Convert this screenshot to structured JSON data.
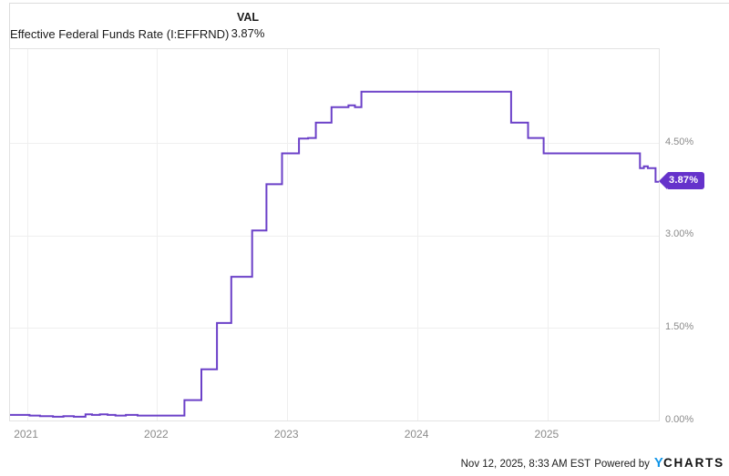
{
  "header": {
    "title": "Effective Federal Funds Rate (I:EFFRND)",
    "val_label": "VAL",
    "val_value": "3.87%"
  },
  "chart_data": {
    "type": "line",
    "line_style": "step-after",
    "title": "Effective Federal Funds Rate (I:EFFRND)",
    "xlabel": "",
    "ylabel": "",
    "xlim": [
      2020.87,
      2025.855
    ],
    "ylim": [
      0,
      6.02
    ],
    "grid": true,
    "y_axis_position": "right",
    "x_ticks": [
      2021,
      2022,
      2023,
      2024,
      2025
    ],
    "x_tick_labels": [
      "2021",
      "2022",
      "2023",
      "2024",
      "2025"
    ],
    "y_ticks": [
      0.0,
      1.5,
      3.0,
      4.5
    ],
    "y_tick_labels": [
      "0.00%",
      "1.50%",
      "3.00%",
      "4.50%"
    ],
    "series": [
      {
        "name": "Effective Federal Funds Rate (I:EFFRND)",
        "points": [
          [
            2020.87,
            0.09
          ],
          [
            2021.02,
            0.08
          ],
          [
            2021.1,
            0.07
          ],
          [
            2021.2,
            0.06
          ],
          [
            2021.28,
            0.07
          ],
          [
            2021.36,
            0.06
          ],
          [
            2021.45,
            0.1
          ],
          [
            2021.5,
            0.09
          ],
          [
            2021.56,
            0.1
          ],
          [
            2021.62,
            0.09
          ],
          [
            2021.68,
            0.08
          ],
          [
            2021.76,
            0.09
          ],
          [
            2021.85,
            0.08
          ],
          [
            2022.05,
            0.08
          ],
          [
            2022.21,
            0.33
          ],
          [
            2022.34,
            0.83
          ],
          [
            2022.46,
            1.58
          ],
          [
            2022.57,
            2.33
          ],
          [
            2022.73,
            3.08
          ],
          [
            2022.84,
            3.83
          ],
          [
            2022.96,
            4.33
          ],
          [
            2023.09,
            4.57
          ],
          [
            2023.16,
            4.58
          ],
          [
            2023.22,
            4.83
          ],
          [
            2023.34,
            5.08
          ],
          [
            2023.47,
            5.11
          ],
          [
            2023.52,
            5.08
          ],
          [
            2023.57,
            5.33
          ],
          [
            2024.72,
            4.83
          ],
          [
            2024.85,
            4.58
          ],
          [
            2024.97,
            4.33
          ],
          [
            2025.71,
            4.09
          ],
          [
            2025.74,
            4.12
          ],
          [
            2025.77,
            4.09
          ],
          [
            2025.83,
            3.87
          ],
          [
            2025.855,
            3.87
          ]
        ]
      }
    ],
    "last_value": 3.87,
    "last_value_label": "3.87%",
    "line_color": "#6b40c8",
    "badge_color": "#6532cb",
    "gridline_color": "#efefef",
    "border_color": "#e3e3e3"
  },
  "footer": {
    "timestamp": "Nov 12, 2025, 8:33 AM EST",
    "powered_by": "Powered by",
    "logo_y": "Y",
    "logo_charts": "CHARTS",
    "logo_blue": "#1095e8"
  }
}
